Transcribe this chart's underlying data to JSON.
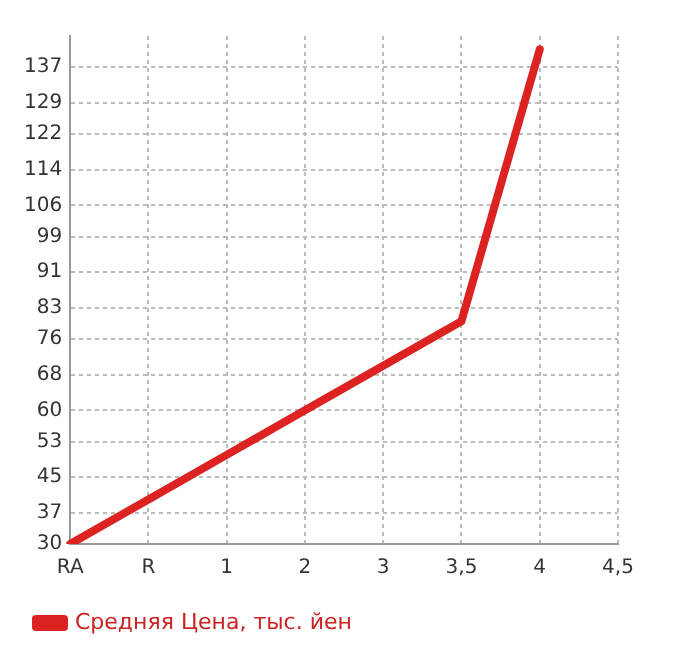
{
  "chart_data": {
    "type": "line",
    "categories": [
      "RA",
      "R",
      "1",
      "2",
      "3",
      "3,5",
      "4",
      "4,5"
    ],
    "series": [
      {
        "name": "Средняя Цена, тыс. йен",
        "color": "#dd2222",
        "values": [
          30,
          40,
          50,
          60,
          70,
          80,
          141,
          null
        ]
      }
    ],
    "ylim": [
      30,
      144
    ],
    "yticks": [
      30,
      37,
      45,
      53,
      60,
      68,
      76,
      83,
      91,
      99,
      106,
      114,
      122,
      129,
      137
    ],
    "grid": true,
    "legend": "bottom left",
    "marker": "none",
    "line_style": "solid"
  }
}
